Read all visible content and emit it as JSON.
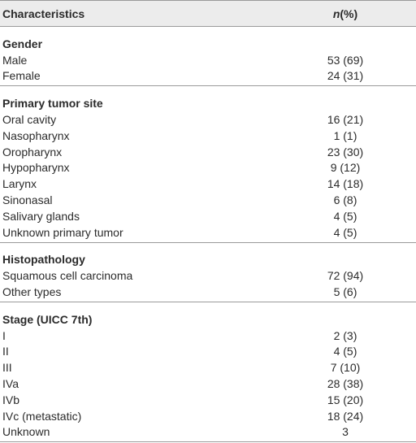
{
  "header": [
    "Characteristics",
    "n(%)"
  ],
  "sections": [
    {
      "title": "Gender",
      "rows": [
        [
          "Male",
          "53 (69)"
        ],
        [
          "Female",
          "24 (31)"
        ]
      ]
    },
    {
      "title": "Primary tumor site",
      "rows": [
        [
          "Oral cavity",
          "16 (21)"
        ],
        [
          "Nasopharynx",
          "1 (1)"
        ],
        [
          "Oropharynx",
          "23 (30)"
        ],
        [
          "Hypopharynx",
          "9 (12)"
        ],
        [
          "Larynx",
          "14 (18)"
        ],
        [
          "Sinonasal",
          "6 (8)"
        ],
        [
          "Salivary glands",
          "4 (5)"
        ],
        [
          "Unknown primary tumor",
          "4 (5)"
        ]
      ]
    },
    {
      "title": "Histopathology",
      "rows": [
        [
          "Squamous cell carcinoma",
          "72 (94)"
        ],
        [
          "Other types",
          "5 (6)"
        ]
      ]
    },
    {
      "title": "Stage (UICC 7th)",
      "rows": [
        [
          "I",
          "2 (3)"
        ],
        [
          "II",
          "4 (5)"
        ],
        [
          "III",
          "7 (10)"
        ],
        [
          "IVa",
          "28 (38)"
        ],
        [
          "IVb",
          "15 (20)"
        ],
        [
          "IVc (metastatic)",
          "18 (24)"
        ],
        [
          "Unknown",
          "3"
        ]
      ]
    }
  ]
}
